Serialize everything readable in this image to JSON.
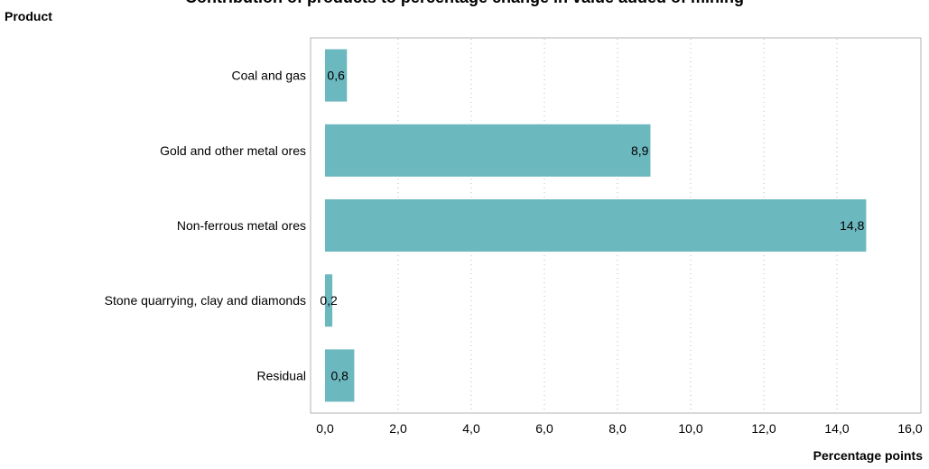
{
  "chart_data": {
    "type": "bar",
    "orientation": "horizontal",
    "title": "Contribution of products to percentage change in value added of mining",
    "ylabel": "Product",
    "xlabel": "Percentage points",
    "categories": [
      "Coal and gas",
      "Gold and other metal ores",
      "Non-ferrous metal ores",
      "Stone quarrying, clay and diamonds",
      "Residual"
    ],
    "values": [
      0.6,
      8.9,
      14.8,
      0.2,
      0.8
    ],
    "value_labels": [
      "0,6",
      "8,9",
      "14,8",
      "0,2",
      "0,8"
    ],
    "xlim": [
      0,
      16
    ],
    "xticks": [
      "0,0",
      "2,0",
      "4,0",
      "6,0",
      "8,0",
      "10,0",
      "12,0",
      "14,0",
      "16,0"
    ],
    "grid": "vertical-dotted",
    "bar_color": "#6cb8bf"
  }
}
